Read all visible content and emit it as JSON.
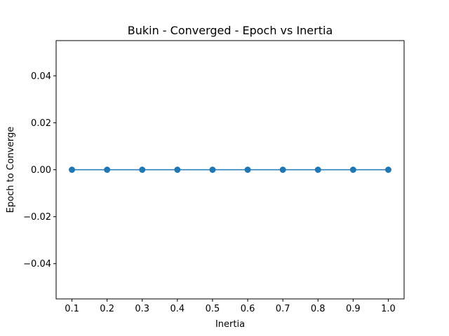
{
  "chart_data": {
    "type": "line",
    "title": "Bukin - Converged - Epoch vs Inertia",
    "xlabel": "Inertia",
    "ylabel": "Epoch to Converge",
    "x": [
      0.1,
      0.2,
      0.3,
      0.4,
      0.5,
      0.6,
      0.7,
      0.8,
      0.9,
      1.0
    ],
    "y": [
      0,
      0,
      0,
      0,
      0,
      0,
      0,
      0,
      0,
      0
    ],
    "xlim": [
      0.055,
      1.045
    ],
    "ylim": [
      -0.055,
      0.055
    ],
    "xticks": [
      0.1,
      0.2,
      0.3,
      0.4,
      0.5,
      0.6,
      0.7,
      0.8,
      0.9,
      1.0
    ],
    "xtick_labels": [
      "0.1",
      "0.2",
      "0.3",
      "0.4",
      "0.5",
      "0.6",
      "0.7",
      "0.8",
      "0.9",
      "1.0"
    ],
    "yticks": [
      -0.04,
      -0.02,
      0.0,
      0.02,
      0.04
    ],
    "ytick_labels": [
      "−0.04",
      "−0.02",
      "0.00",
      "0.02",
      "0.04"
    ],
    "grid": false,
    "marker": "circle",
    "line_color": "#1f77b4"
  }
}
